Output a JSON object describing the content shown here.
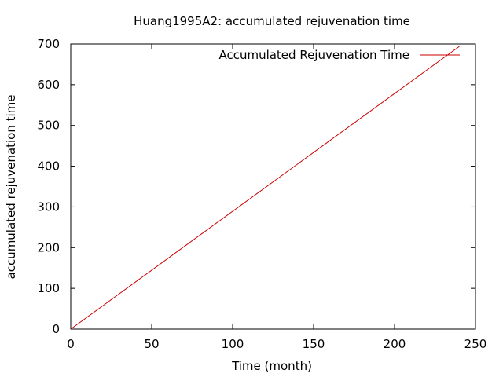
{
  "chart_data": {
    "type": "line",
    "title": "Huang1995A2: accumulated rejuvenation time",
    "xlabel": "Time (month)",
    "ylabel": "accumulated rejuvenation time",
    "xlim": [
      0,
      250
    ],
    "ylim": [
      0,
      700
    ],
    "xticks": [
      0,
      50,
      100,
      150,
      200,
      250
    ],
    "yticks": [
      0,
      100,
      200,
      300,
      400,
      500,
      600,
      700
    ],
    "grid": false,
    "legend_position": "top-right",
    "series": [
      {
        "name": "Accumulated Rejuvenation Time",
        "color": "#cc0000",
        "x": [
          0,
          240
        ],
        "y": [
          0,
          694
        ]
      }
    ]
  }
}
